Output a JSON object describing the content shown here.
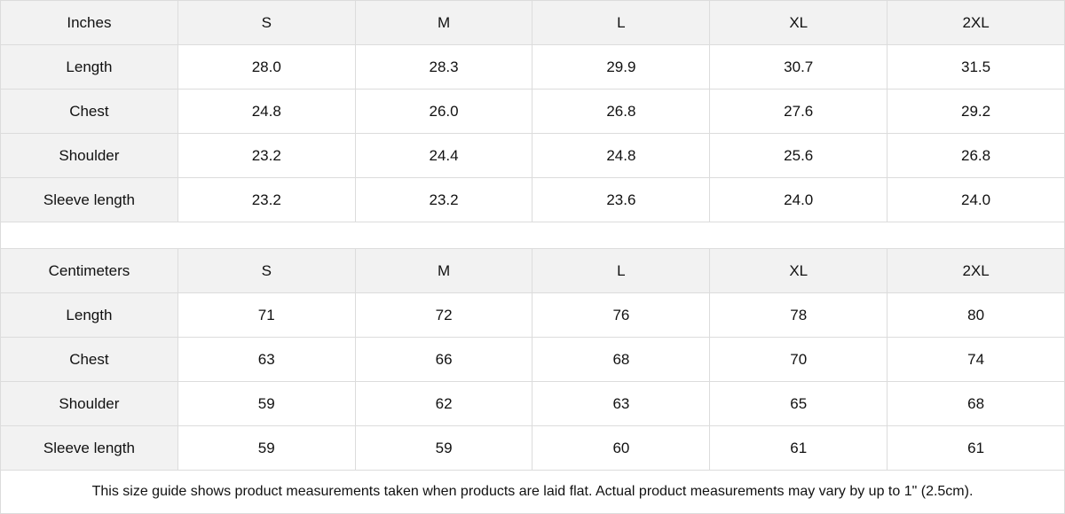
{
  "tables": [
    {
      "unit": "Inches",
      "sizes": [
        "S",
        "M",
        "L",
        "XL",
        "2XL"
      ],
      "rows": [
        {
          "label": "Length",
          "values": [
            "28.0",
            "28.3",
            "29.9",
            "30.7",
            "31.5"
          ]
        },
        {
          "label": "Chest",
          "values": [
            "24.8",
            "26.0",
            "26.8",
            "27.6",
            "29.2"
          ]
        },
        {
          "label": "Shoulder",
          "values": [
            "23.2",
            "24.4",
            "24.8",
            "25.6",
            "26.8"
          ]
        },
        {
          "label": "Sleeve length",
          "values": [
            "23.2",
            "23.2",
            "23.6",
            "24.0",
            "24.0"
          ]
        }
      ]
    },
    {
      "unit": "Centimeters",
      "sizes": [
        "S",
        "M",
        "L",
        "XL",
        "2XL"
      ],
      "rows": [
        {
          "label": "Length",
          "values": [
            "71",
            "72",
            "76",
            "78",
            "80"
          ]
        },
        {
          "label": "Chest",
          "values": [
            "63",
            "66",
            "68",
            "70",
            "74"
          ]
        },
        {
          "label": "Shoulder",
          "values": [
            "59",
            "62",
            "63",
            "65",
            "68"
          ]
        },
        {
          "label": "Sleeve length",
          "values": [
            "59",
            "59",
            "60",
            "61",
            "61"
          ]
        }
      ]
    }
  ],
  "footnote": "This size guide shows product measurements taken when products are laid flat.  Actual product measurements may vary by up to 1\" (2.5cm).",
  "colors": {
    "header_bg": "#f2f2f2",
    "border": "#dcdcdc"
  }
}
